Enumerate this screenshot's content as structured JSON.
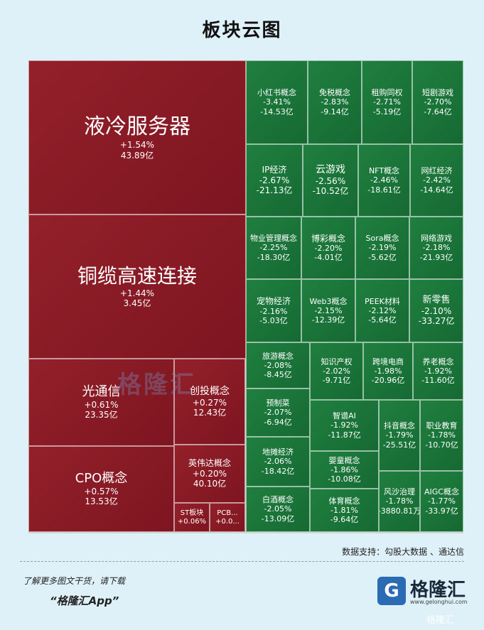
{
  "title": "板块云图",
  "watermark": "格隆汇",
  "source": "数据支持：勾股大数据 、通达信",
  "promo": {
    "line1": "了解更多图文干货，请下载",
    "line2": "“格隆汇App”"
  },
  "brand": {
    "logo_glyph": "G",
    "name": "格隆汇",
    "url": "www.gelonghui.com",
    "corner": "格隆汇"
  },
  "colors": {
    "up": "#8b1c26",
    "down": "#1e7a3c"
  },
  "chart_data": {
    "type": "treemap",
    "title": "板块云图",
    "items": [
      {
        "name": "液冷服务器",
        "change": "+1.54%",
        "amount": "43.89亿"
      },
      {
        "name": "铜缆高速连接",
        "change": "+1.44%",
        "amount": "3.45亿"
      },
      {
        "name": "光通信",
        "change": "+0.61%",
        "amount": "23.35亿"
      },
      {
        "name": "创投概念",
        "change": "+0.27%",
        "amount": "12.43亿"
      },
      {
        "name": "CPO概念",
        "change": "+0.57%",
        "amount": "13.53亿"
      },
      {
        "name": "英伟达概念",
        "change": "+0.20%",
        "amount": "40.10亿"
      },
      {
        "name": "ST板块",
        "change": "+0.06%",
        "amount": ""
      },
      {
        "name": "PCB...",
        "change": "+0.0...",
        "amount": ""
      },
      {
        "name": "小红书概念",
        "change": "-3.41%",
        "amount": "-14.53亿"
      },
      {
        "name": "免税概念",
        "change": "-2.83%",
        "amount": "-9.14亿"
      },
      {
        "name": "租购同权",
        "change": "-2.71%",
        "amount": "-5.19亿"
      },
      {
        "name": "短剧游戏",
        "change": "-2.70%",
        "amount": "-7.64亿"
      },
      {
        "name": "IP经济",
        "change": "-2.67%",
        "amount": "-21.13亿"
      },
      {
        "name": "云游戏",
        "change": "-2.56%",
        "amount": "-10.52亿"
      },
      {
        "name": "NFT概念",
        "change": "-2.46%",
        "amount": "-18.61亿"
      },
      {
        "name": "网红经济",
        "change": "-2.42%",
        "amount": "-14.64亿"
      },
      {
        "name": "物业管理概念",
        "change": "-2.25%",
        "amount": "-18.30亿"
      },
      {
        "name": "博彩概念",
        "change": "-2.20%",
        "amount": "-4.01亿"
      },
      {
        "name": "Sora概念",
        "change": "-2.19%",
        "amount": "-5.62亿"
      },
      {
        "name": "网络游戏",
        "change": "-2.18%",
        "amount": "-21.93亿"
      },
      {
        "name": "宠物经济",
        "change": "-2.16%",
        "amount": "-5.03亿"
      },
      {
        "name": "Web3概念",
        "change": "-2.15%",
        "amount": "-12.39亿"
      },
      {
        "name": "PEEK材料",
        "change": "-2.12%",
        "amount": "-5.64亿"
      },
      {
        "name": "新零售",
        "change": "-2.10%",
        "amount": "-33.27亿"
      },
      {
        "name": "旅游概念",
        "change": "-2.08%",
        "amount": "-8.45亿"
      },
      {
        "name": "知识产权",
        "change": "-2.02%",
        "amount": "-9.71亿"
      },
      {
        "name": "跨境电商",
        "change": "-1.98%",
        "amount": "-20.96亿"
      },
      {
        "name": "养老概念",
        "change": "-1.92%",
        "amount": "-11.60亿"
      },
      {
        "name": "预制菜",
        "change": "-2.07%",
        "amount": "-6.94亿"
      },
      {
        "name": "智谱AI",
        "change": "-1.92%",
        "amount": "-11.87亿"
      },
      {
        "name": "抖音概念",
        "change": "-1.79%",
        "amount": "-25.51亿"
      },
      {
        "name": "职业教育",
        "change": "-1.78%",
        "amount": "-10.70亿"
      },
      {
        "name": "地摊经济",
        "change": "-2.06%",
        "amount": "-18.42亿"
      },
      {
        "name": "婴童概念",
        "change": "-1.86%",
        "amount": "-10.08亿"
      },
      {
        "name": "风沙治理",
        "change": "-1.78%",
        "amount": "-3880.81万"
      },
      {
        "name": "AIGC概念",
        "change": "-1.77%",
        "amount": "-33.97亿"
      },
      {
        "name": "白酒概念",
        "change": "-2.05%",
        "amount": "-13.09亿"
      },
      {
        "name": "体育概念",
        "change": "-1.81%",
        "amount": "-9.64亿"
      }
    ]
  }
}
